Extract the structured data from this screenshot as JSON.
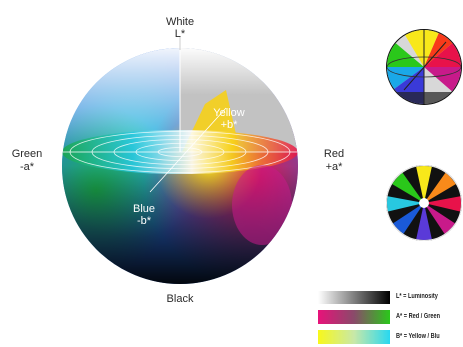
{
  "axis_labels": {
    "white": "White",
    "l_star": "L*",
    "yellow": "Yellow",
    "plus_b": "+b*",
    "green": "Green",
    "minus_a": "-a*",
    "red": "Red",
    "plus_a": "+a*",
    "blue": "Blue",
    "minus_b": "-b*",
    "black": "Black"
  },
  "legend": [
    {
      "text": "L* = Luminosity"
    },
    {
      "text": "A* = Red / Green"
    },
    {
      "text": "B* = Yellow / Blu"
    }
  ],
  "colors": {
    "red": "#e8124a",
    "green": "#1aa84a",
    "blue": "#1a5ad8",
    "yellow": "#f8d21a",
    "cyan": "#28c8e0",
    "magenta": "#c81a8a"
  }
}
